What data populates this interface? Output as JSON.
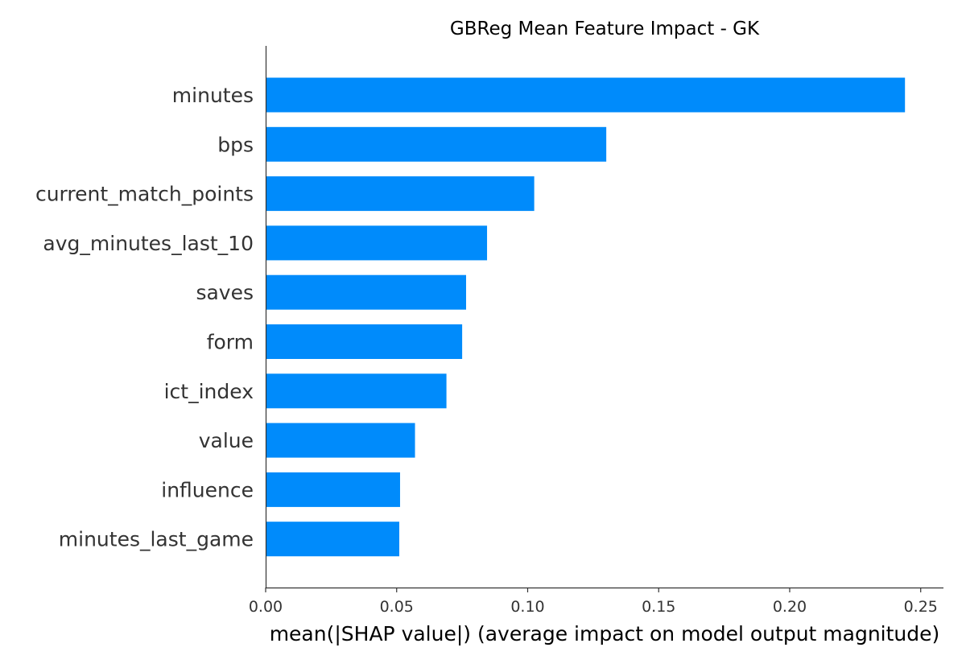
{
  "chart_data": {
    "type": "bar",
    "orientation": "horizontal",
    "title": "GBReg Mean Feature Impact - GK",
    "xlabel": "mean(|SHAP value|) (average impact on model output magnitude)",
    "ylabel": "",
    "categories": [
      "minutes",
      "bps",
      "current_match_points",
      "avg_minutes_last_10",
      "saves",
      "form",
      "ict_index",
      "value",
      "influence",
      "minutes_last_game"
    ],
    "values": [
      0.244,
      0.13,
      0.1025,
      0.0845,
      0.0765,
      0.075,
      0.069,
      0.057,
      0.0513,
      0.051
    ],
    "xlim": [
      0,
      0.255
    ],
    "xticks": [
      0,
      0.05,
      0.1,
      0.15,
      0.2,
      0.25
    ],
    "xtick_labels": [
      "0.00",
      "0.05",
      "0.10",
      "0.15",
      "0.20",
      "0.25"
    ],
    "bar_color": "#008bfb",
    "axis_color": "#333333",
    "grid": false,
    "legend": "none"
  }
}
